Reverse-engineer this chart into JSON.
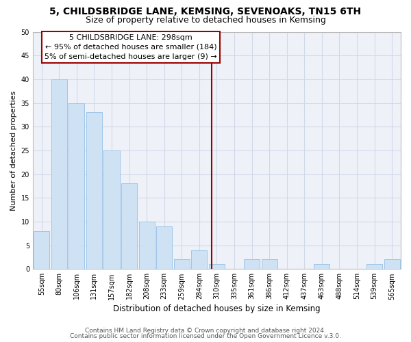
{
  "title": "5, CHILDSBRIDGE LANE, KEMSING, SEVENOAKS, TN15 6TH",
  "subtitle": "Size of property relative to detached houses in Kemsing",
  "xlabel": "Distribution of detached houses by size in Kemsing",
  "ylabel": "Number of detached properties",
  "bar_labels": [
    "55sqm",
    "80sqm",
    "106sqm",
    "131sqm",
    "157sqm",
    "182sqm",
    "208sqm",
    "233sqm",
    "259sqm",
    "284sqm",
    "310sqm",
    "335sqm",
    "361sqm",
    "386sqm",
    "412sqm",
    "437sqm",
    "463sqm",
    "488sqm",
    "514sqm",
    "539sqm",
    "565sqm"
  ],
  "bar_values": [
    8,
    40,
    35,
    33,
    25,
    18,
    10,
    9,
    2,
    4,
    1,
    0,
    2,
    2,
    0,
    0,
    1,
    0,
    0,
    1,
    2
  ],
  "bar_color": "#cfe2f3",
  "bar_edge_color": "#9fc5e8",
  "grid_color": "#d0d8e8",
  "annotation_line1": "5 CHILDSBRIDGE LANE: 298sqm",
  "annotation_line2": "← 95% of detached houses are smaller (184)",
  "annotation_line3": "5% of semi-detached houses are larger (9) →",
  "vline_x_index": 9.72,
  "vline_color": "#990000",
  "ylim": [
    0,
    50
  ],
  "yticks": [
    0,
    5,
    10,
    15,
    20,
    25,
    30,
    35,
    40,
    45,
    50
  ],
  "footer_line1": "Contains HM Land Registry data © Crown copyright and database right 2024.",
  "footer_line2": "Contains public sector information licensed under the Open Government Licence v.3.0.",
  "title_fontsize": 10,
  "subtitle_fontsize": 9,
  "xlabel_fontsize": 8.5,
  "ylabel_fontsize": 8,
  "tick_fontsize": 7,
  "annotation_fontsize": 8,
  "footer_fontsize": 6.5
}
